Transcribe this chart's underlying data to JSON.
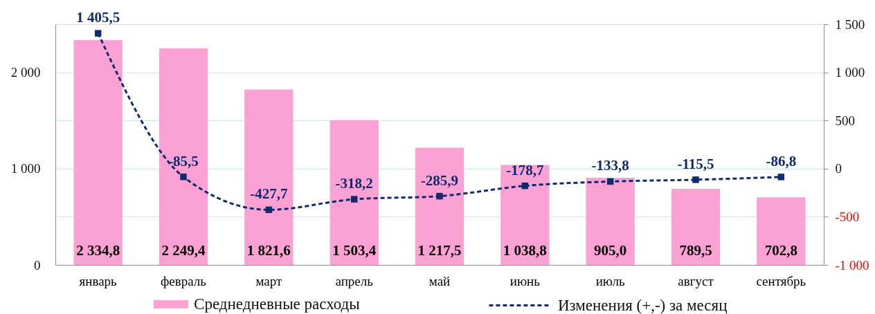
{
  "chart_data": {
    "type": "bar",
    "categories": [
      "январь",
      "февраль",
      "март",
      "апрель",
      "май",
      "июнь",
      "июль",
      "август",
      "сентябрь"
    ],
    "series": [
      {
        "name": "Среднедневные расходы",
        "color": "#fba1d4",
        "values": [
          2334.8,
          2249.4,
          1821.6,
          1503.4,
          1217.5,
          1038.8,
          905.0,
          789.5,
          702.8
        ],
        "value_labels": [
          "2 334,8",
          "2 249,4",
          "1 821,6",
          "1 503,4",
          "1 217,5",
          "1 038,8",
          "905,0",
          "789,5",
          "702,8"
        ]
      },
      {
        "name": "Изменения (+,-) за месяц",
        "type": "line",
        "axis": "y2",
        "color": "#0f2a6e",
        "values": [
          1405.5,
          -85.5,
          -427.7,
          -318.2,
          -285.9,
          -178.7,
          -133.8,
          -115.5,
          -86.8
        ],
        "value_labels": [
          "1 405,5",
          "-85,5",
          "-427,7",
          "-318,2",
          "-285,9",
          "-178,7",
          "-133,8",
          "-115,5",
          "-86,8"
        ]
      }
    ],
    "ylim": [
      0,
      2500
    ],
    "yticks": [
      0,
      {
        "value": 1000,
        "label": "1 000"
      },
      {
        "value": 2000,
        "label": "2 000"
      }
    ],
    "y2lim": [
      -1000,
      1500
    ],
    "y2ticks": [
      {
        "value": -1000,
        "label": "-1 000"
      },
      -500,
      0,
      500,
      {
        "value": 1000,
        "label": "1 000"
      },
      {
        "value": 1500,
        "label": "1 500"
      }
    ],
    "grid": true,
    "legend": "bottom",
    "marker": "square",
    "line_style": "dashed"
  }
}
